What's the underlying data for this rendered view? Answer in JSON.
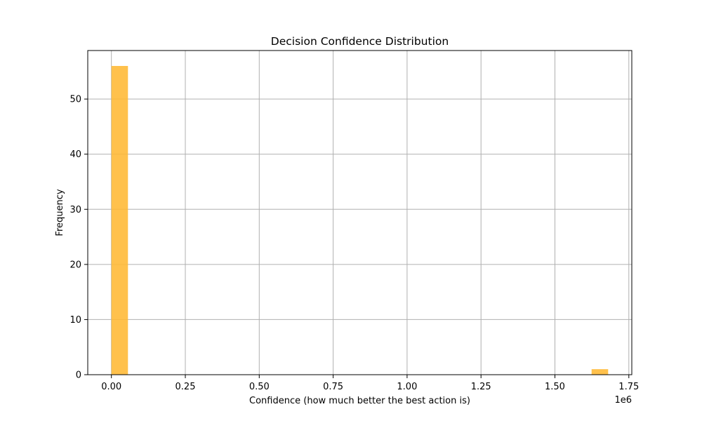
{
  "chart_data": {
    "type": "bar",
    "title": "Decision Confidence Distribution",
    "xlabel": "Confidence (how much better the best action is)",
    "ylabel": "Frequency",
    "x_offset_label": "1e6",
    "xlim": [
      -0.08,
      1.76
    ],
    "ylim": [
      0,
      58.8
    ],
    "grid": true,
    "bar_color": "#ffb833",
    "bar_opacity": 0.88,
    "x_ticks": [
      {
        "value": 0.0,
        "label": "0.00"
      },
      {
        "value": 0.25,
        "label": "0.25"
      },
      {
        "value": 0.5,
        "label": "0.50"
      },
      {
        "value": 0.75,
        "label": "0.75"
      },
      {
        "value": 1.0,
        "label": "1.00"
      },
      {
        "value": 1.25,
        "label": "1.25"
      },
      {
        "value": 1.5,
        "label": "1.50"
      },
      {
        "value": 1.75,
        "label": "1.75"
      }
    ],
    "y_ticks": [
      {
        "value": 0,
        "label": "0"
      },
      {
        "value": 10,
        "label": "10"
      },
      {
        "value": 20,
        "label": "20"
      },
      {
        "value": 30,
        "label": "30"
      },
      {
        "value": 40,
        "label": "40"
      },
      {
        "value": 50,
        "label": "50"
      }
    ],
    "bins": [
      {
        "x0": 0.0,
        "x1": 0.056,
        "count": 56
      },
      {
        "x0": 1.624,
        "x1": 1.68,
        "count": 1
      }
    ]
  }
}
